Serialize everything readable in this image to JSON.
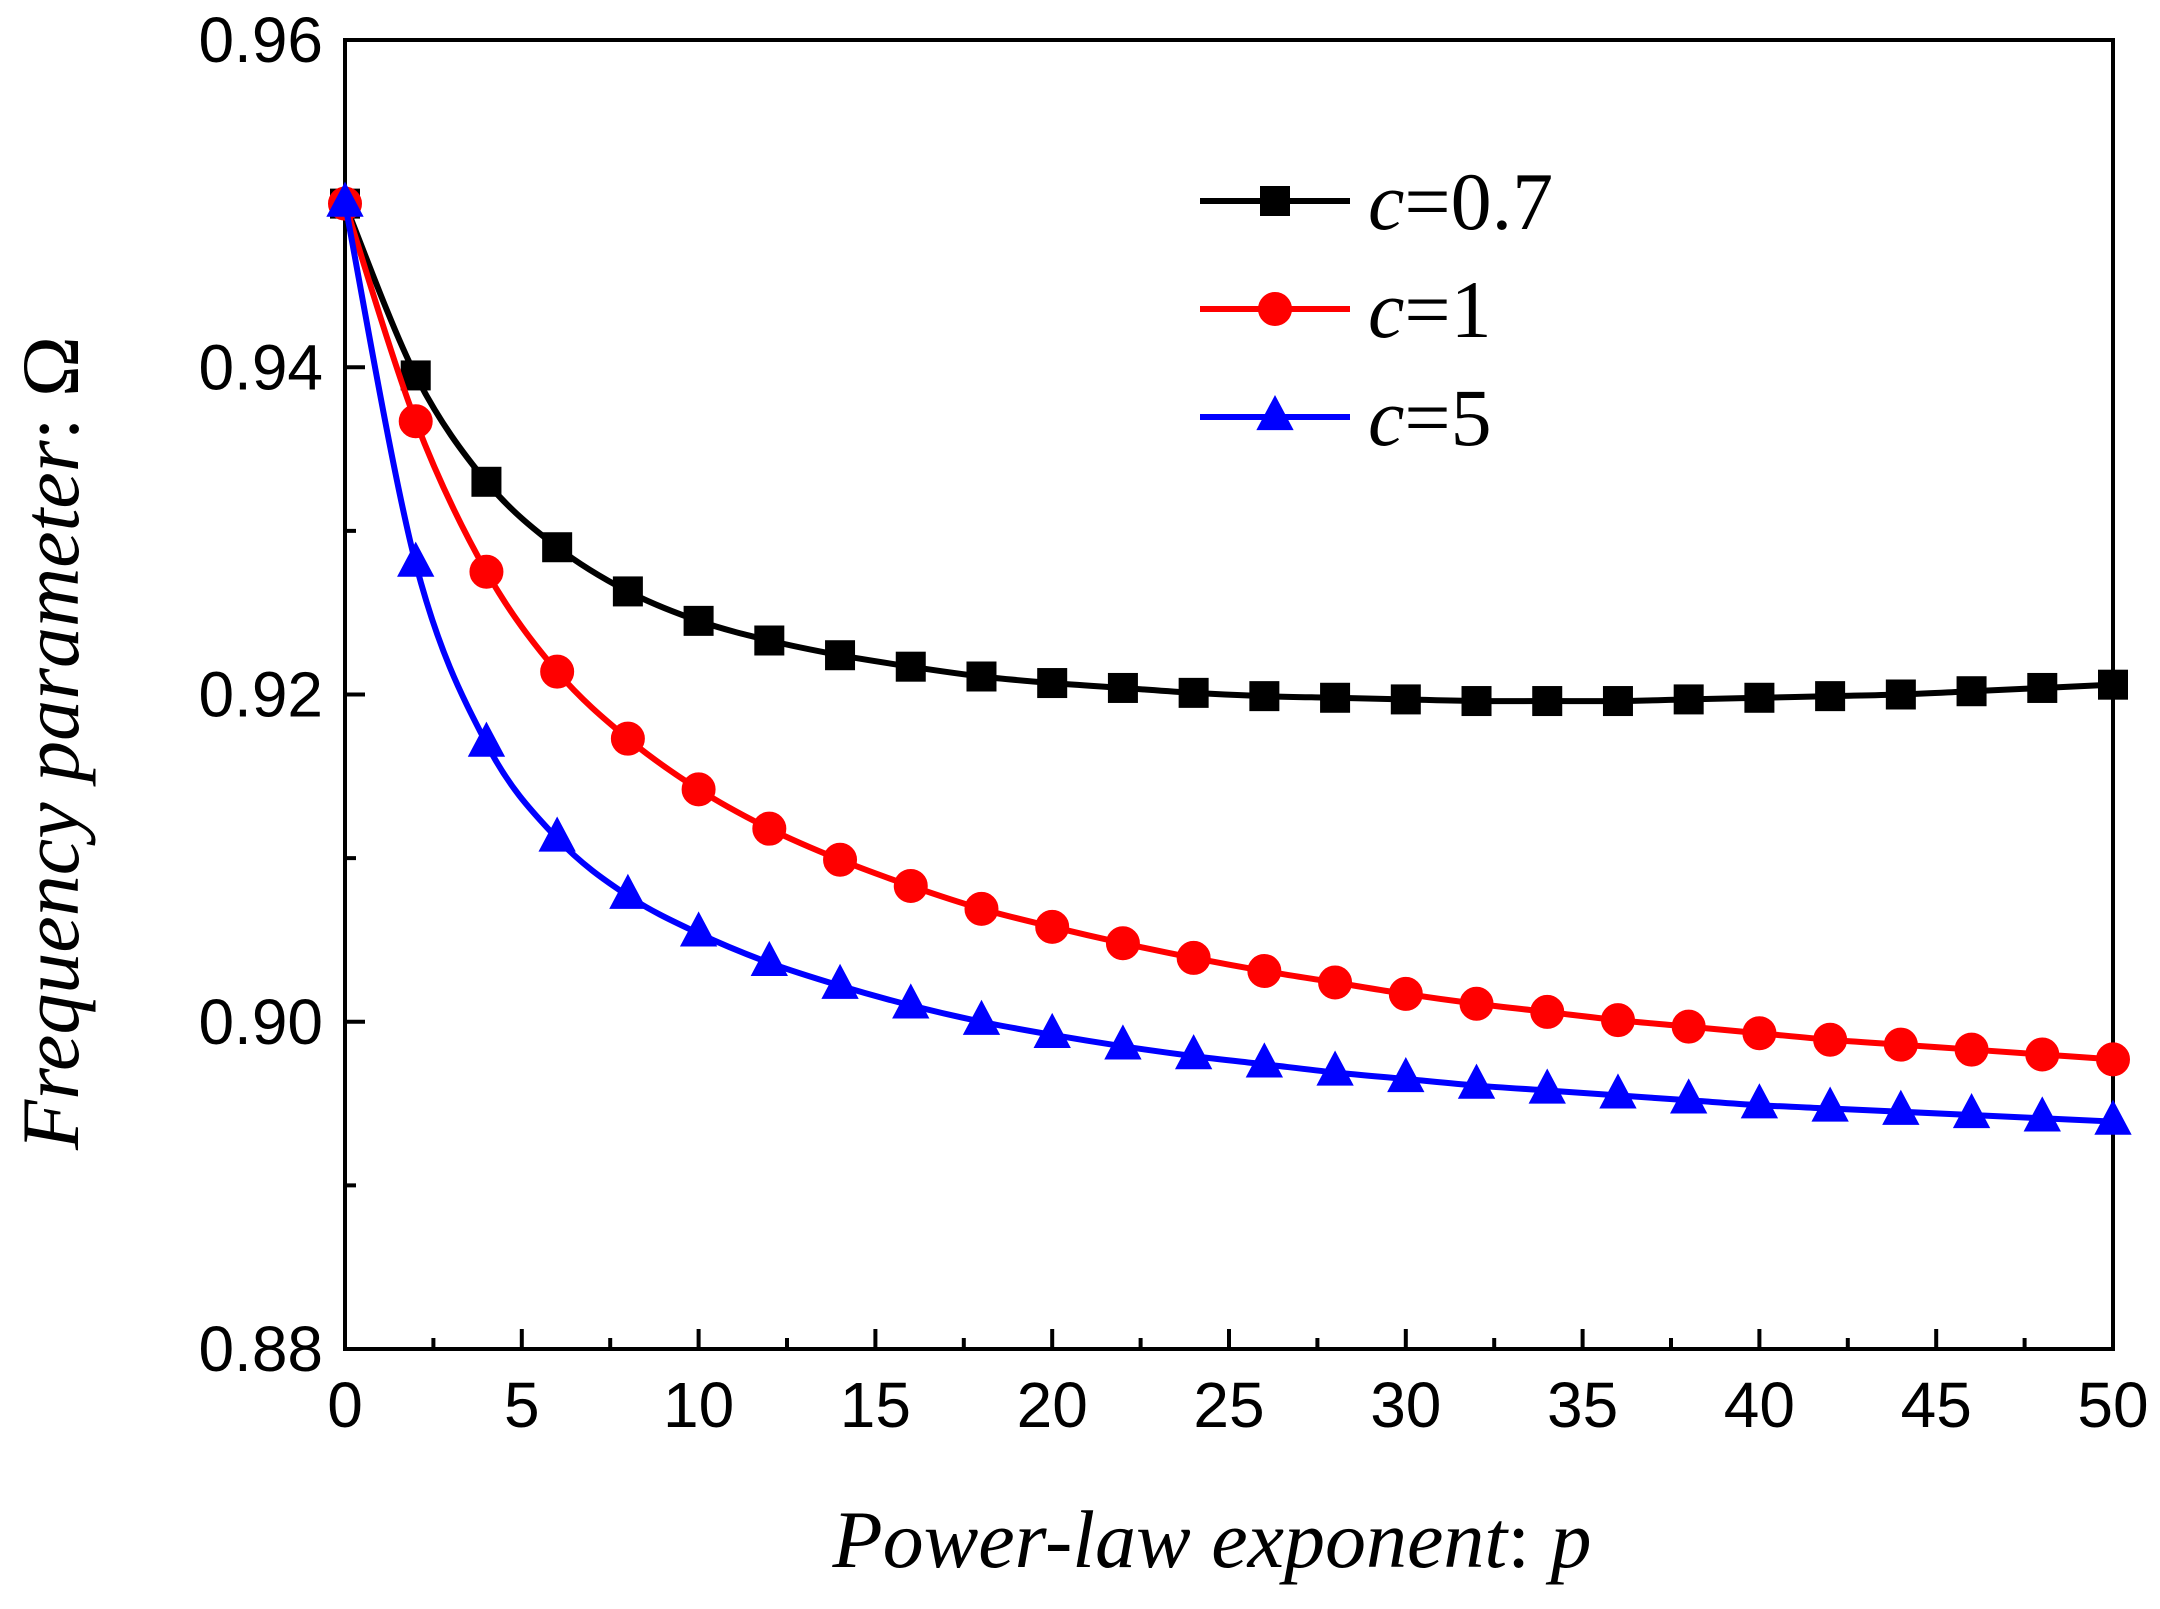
{
  "chart_data": {
    "type": "line",
    "xlabel": {
      "prefix": "Power-law exponent",
      "colon": ": ",
      "variable": "p"
    },
    "ylabel": {
      "prefix": "Frequency parameter",
      "colon": ": ",
      "variable": "Ω"
    },
    "xlim": [
      0,
      50
    ],
    "ylim": [
      0.88,
      0.96
    ],
    "x_ticks": [
      0,
      5,
      10,
      15,
      20,
      25,
      30,
      35,
      40,
      45,
      50
    ],
    "x_tick_labels": [
      "0",
      "5",
      "10",
      "15",
      "20",
      "25",
      "30",
      "35",
      "40",
      "45",
      "50"
    ],
    "y_ticks": [
      0.88,
      0.9,
      0.92,
      0.94,
      0.96
    ],
    "y_tick_labels": [
      "0.88",
      "0.90",
      "0.92",
      "0.94",
      "0.96"
    ],
    "y_minor_ticks": [
      0.89,
      0.91,
      0.93,
      0.95
    ],
    "x_minor_ticks": [
      2.5,
      7.5,
      12.5,
      17.5,
      22.5,
      27.5,
      32.5,
      37.5,
      42.5,
      47.5
    ],
    "grid": false,
    "legend_position": "top-right",
    "x": [
      0,
      2,
      4,
      6,
      8,
      10,
      12,
      14,
      16,
      18,
      20,
      22,
      24,
      26,
      28,
      30,
      32,
      34,
      36,
      38,
      40,
      42,
      44,
      46,
      48,
      50
    ],
    "series": [
      {
        "name": "c=0.7",
        "legend_var": "c",
        "legend_value": "=0.7",
        "color": "#000000",
        "marker": "square",
        "values": [
          0.95,
          0.9395,
          0.933,
          0.929,
          0.9263,
          0.9245,
          0.9233,
          0.9224,
          0.9217,
          0.9211,
          0.9207,
          0.9204,
          0.9201,
          0.9199,
          0.9198,
          0.9197,
          0.9196,
          0.9196,
          0.9196,
          0.9197,
          0.9198,
          0.9199,
          0.92,
          0.9202,
          0.9204,
          0.9206
        ]
      },
      {
        "name": "c=1",
        "legend_var": "c",
        "legend_value": "=1",
        "color": "#ff0000",
        "marker": "circle",
        "values": [
          0.95,
          0.9367,
          0.9275,
          0.9214,
          0.9173,
          0.9142,
          0.9118,
          0.9099,
          0.9083,
          0.9069,
          0.9058,
          0.9048,
          0.9039,
          0.9031,
          0.9024,
          0.9017,
          0.9011,
          0.9006,
          0.9001,
          0.8997,
          0.8993,
          0.8989,
          0.8986,
          0.8983,
          0.898,
          0.8977
        ]
      },
      {
        "name": "c=5",
        "legend_var": "c",
        "legend_value": "=5",
        "color": "#0000ff",
        "marker": "triangle",
        "values": [
          0.95,
          0.928,
          0.917,
          0.9112,
          0.9077,
          0.9054,
          0.9036,
          0.9022,
          0.901,
          0.9,
          0.8992,
          0.8985,
          0.8979,
          0.8974,
          0.8969,
          0.8965,
          0.8961,
          0.8958,
          0.8955,
          0.8952,
          0.8949,
          0.8947,
          0.8945,
          0.8943,
          0.8941,
          0.8939
        ]
      }
    ]
  }
}
